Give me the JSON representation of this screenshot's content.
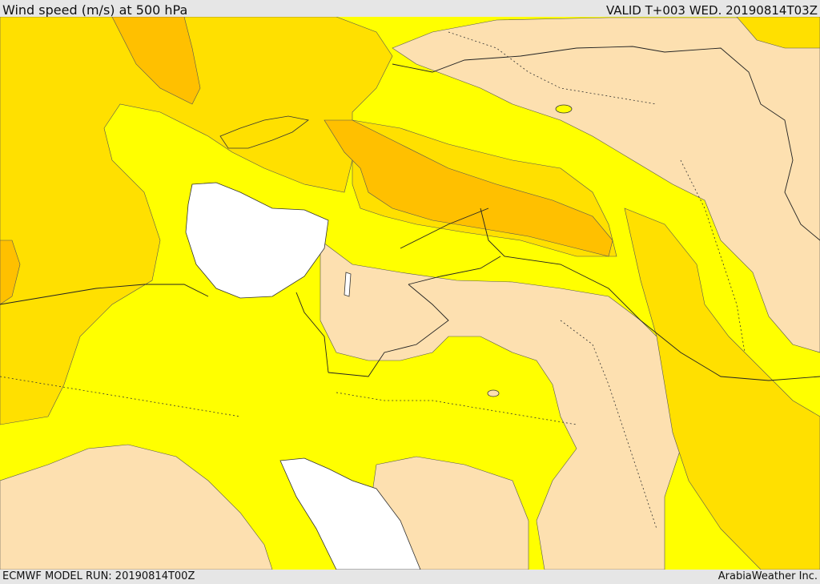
{
  "header": {
    "title": "Wind speed (m/s) at 500 hPa",
    "valid": "VALID T+003 WED. 20190814T03Z"
  },
  "footer": {
    "model_run": "ECMWF MODEL RUN: 20190814T00Z",
    "credit": "ArabiaWeather Inc."
  },
  "colors": {
    "band_low": "#fde0b0",
    "band_mid": "#ffff00",
    "band_high": "#ffe000",
    "band_higher": "#ffc000",
    "band_highest": "#ffb000",
    "water": "#ffffff"
  }
}
